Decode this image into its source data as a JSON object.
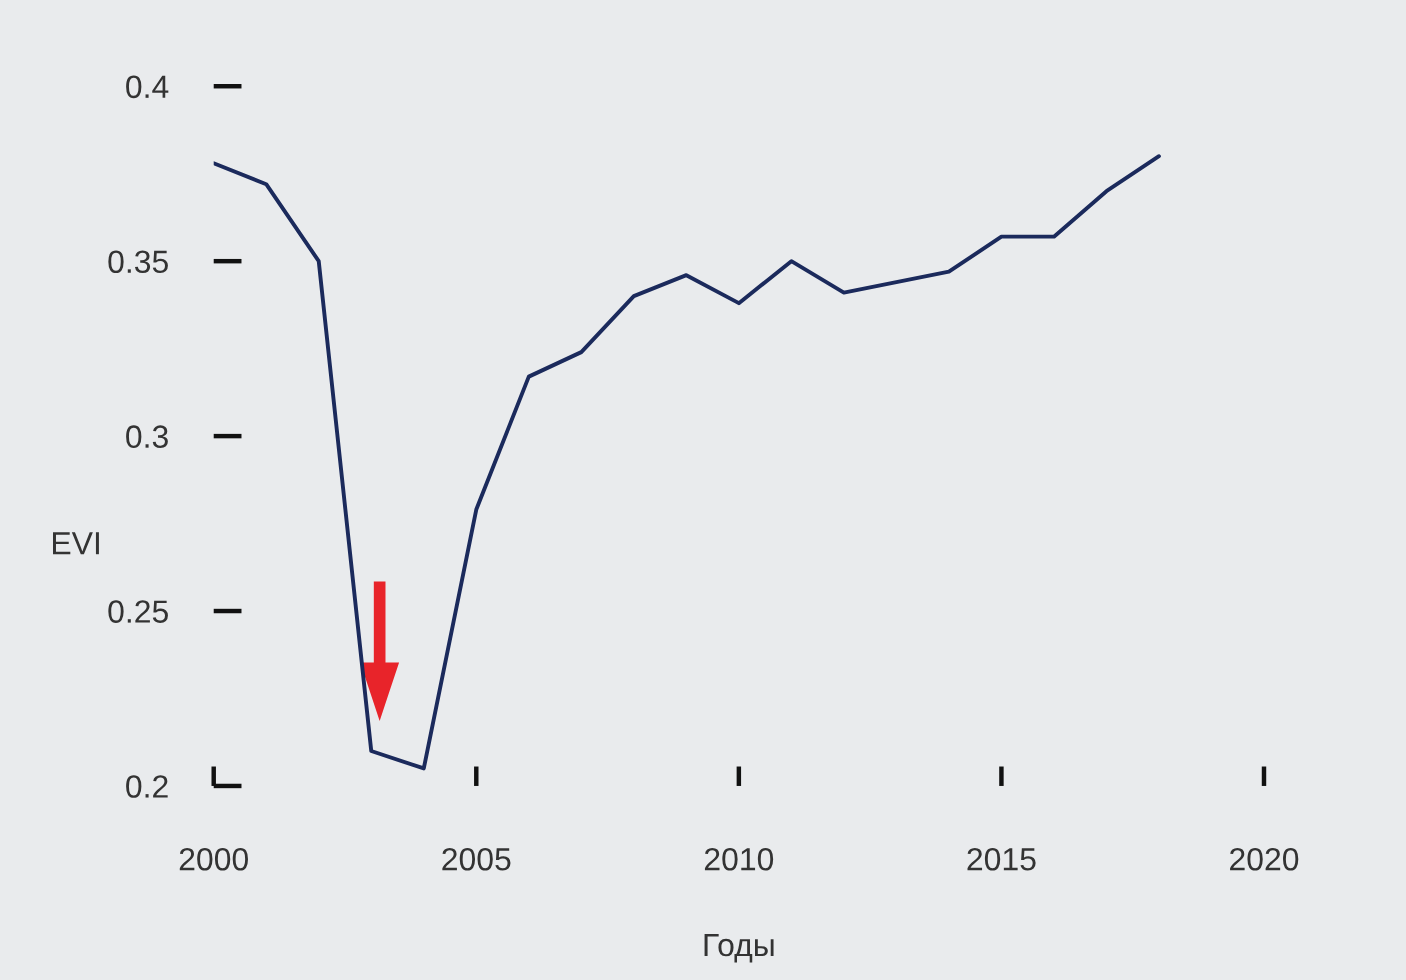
{
  "chart_data": {
    "type": "line",
    "xlabel": "Годы",
    "ylabel": "EVI",
    "x": [
      2000,
      2001,
      2002,
      2003,
      2004,
      2005,
      2006,
      2007,
      2008,
      2009,
      2010,
      2011,
      2012,
      2013,
      2014,
      2015,
      2016,
      2017,
      2018
    ],
    "series": [
      {
        "color": "#1b2a5c",
        "values": [
          0.378,
          0.372,
          0.35,
          0.21,
          0.205,
          0.279,
          0.317,
          0.324,
          0.34,
          0.346,
          0.338,
          0.35,
          0.341,
          0.344,
          0.347,
          0.357,
          0.357,
          0.37,
          0.38
        ]
      }
    ],
    "xlim": [
      2000,
      2020
    ],
    "ylim": [
      0.2,
      0.4
    ],
    "xticks": [
      2000,
      2005,
      2010,
      2015,
      2020
    ],
    "yticks": [
      0.2,
      0.25,
      0.3,
      0.35,
      0.4
    ],
    "grid": false,
    "marker": "none",
    "line_style": "solid"
  }
}
